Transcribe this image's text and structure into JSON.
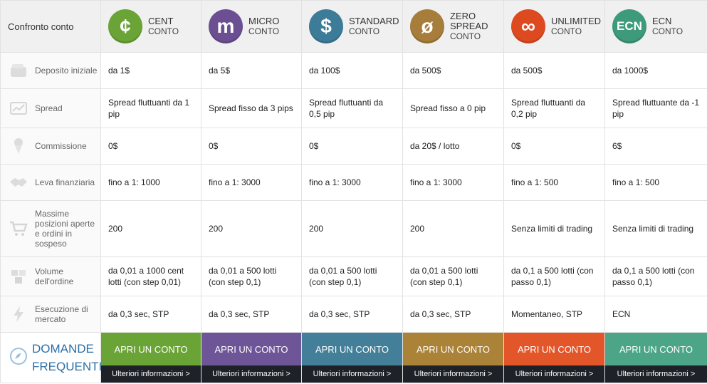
{
  "header": {
    "title": "Confronto conto"
  },
  "accounts": [
    {
      "symbol": "¢",
      "name": "CENT",
      "sub": "CONTO",
      "color": "#6aa336",
      "btn_color": "#6aa336"
    },
    {
      "symbol": "m",
      "name": "MICRO",
      "sub": "CONTO",
      "color": "#6b4f92",
      "btn_color": "#6e5597"
    },
    {
      "symbol": "$",
      "name": "STANDARD",
      "sub": "CONTO",
      "color": "#3d7c99",
      "btn_color": "#437f98"
    },
    {
      "symbol": "ø",
      "name": "ZERO SPREAD",
      "sub": "CONTO",
      "color": "#a67d3a",
      "btn_color": "#aa8238"
    },
    {
      "symbol": "∞",
      "name": "UNLIMITED",
      "sub": "CONTO",
      "color": "#dd4a20",
      "btn_color": "#e2562a"
    },
    {
      "symbol": "ECN",
      "name": "ECN",
      "sub": "CONTO",
      "color": "#3d9a7a",
      "btn_color": "#4ba586"
    }
  ],
  "rows": [
    {
      "label": "Deposito iniziale",
      "icon": "wallet-icon",
      "values": [
        "da 1$",
        "da 5$",
        "da 100$",
        "da 500$",
        "da 500$",
        "da 1000$"
      ]
    },
    {
      "label": "Spread",
      "icon": "chart-icon",
      "values": [
        "Spread fluttuanti da 1 pip",
        "Spread fisso da 3 pips",
        "Spread fluttuanti da 0,5 pip",
        "Spread fisso a 0 pip",
        "Spread fluttuanti da 0,2 pip",
        "Spread fluttuante da  -1 pip"
      ]
    },
    {
      "label": "Commissione",
      "icon": "ice-cream-icon",
      "values": [
        "0$",
        "0$",
        "0$",
        "da 20$ / lotto",
        "0$",
        "6$"
      ]
    },
    {
      "label": "Leva finanziaria",
      "icon": "handshake-icon",
      "values": [
        "fino a 1: 1000",
        "fino a 1: 3000",
        "fino a 1: 3000",
        "fino a 1: 3000",
        "fino a 1: 500",
        "fino a 1: 500"
      ]
    },
    {
      "label": "Massime posizioni aperte e ordini in sospeso",
      "icon": "cart-icon",
      "values": [
        "200",
        "200",
        "200",
        "200",
        "Senza limiti di trading",
        "Senza limiti di trading"
      ]
    },
    {
      "label": "Volume dell'ordine",
      "icon": "boxes-icon",
      "values": [
        "da 0,01 a 1000 cent lotti (con step 0,01)",
        "da 0,01 a 500 lotti (con step 0,1)",
        "da 0,01 a 500 lotti (con step 0,1)",
        "da 0,01 a 500 lotti (con step 0,1)",
        "da 0,1 a 500 lotti (con passo 0,1)",
        "da 0,1 a 500 lotti (con passo 0,1)"
      ]
    },
    {
      "label": "Esecuzione di mercato",
      "icon": "lightning-icon",
      "values": [
        "da 0,3 sec, STP",
        "da 0,3 sec, STP",
        "da 0,3 sec, STP",
        "da 0,3 sec, STP",
        "Momentaneo, STP",
        "ECN"
      ]
    }
  ],
  "faq": {
    "label": "DOMANDE FREQUENTI",
    "icon": "compass-icon"
  },
  "buttons": {
    "open_label": "APRI UN CONTO",
    "more_label": "Ulteriori informazioni >"
  }
}
